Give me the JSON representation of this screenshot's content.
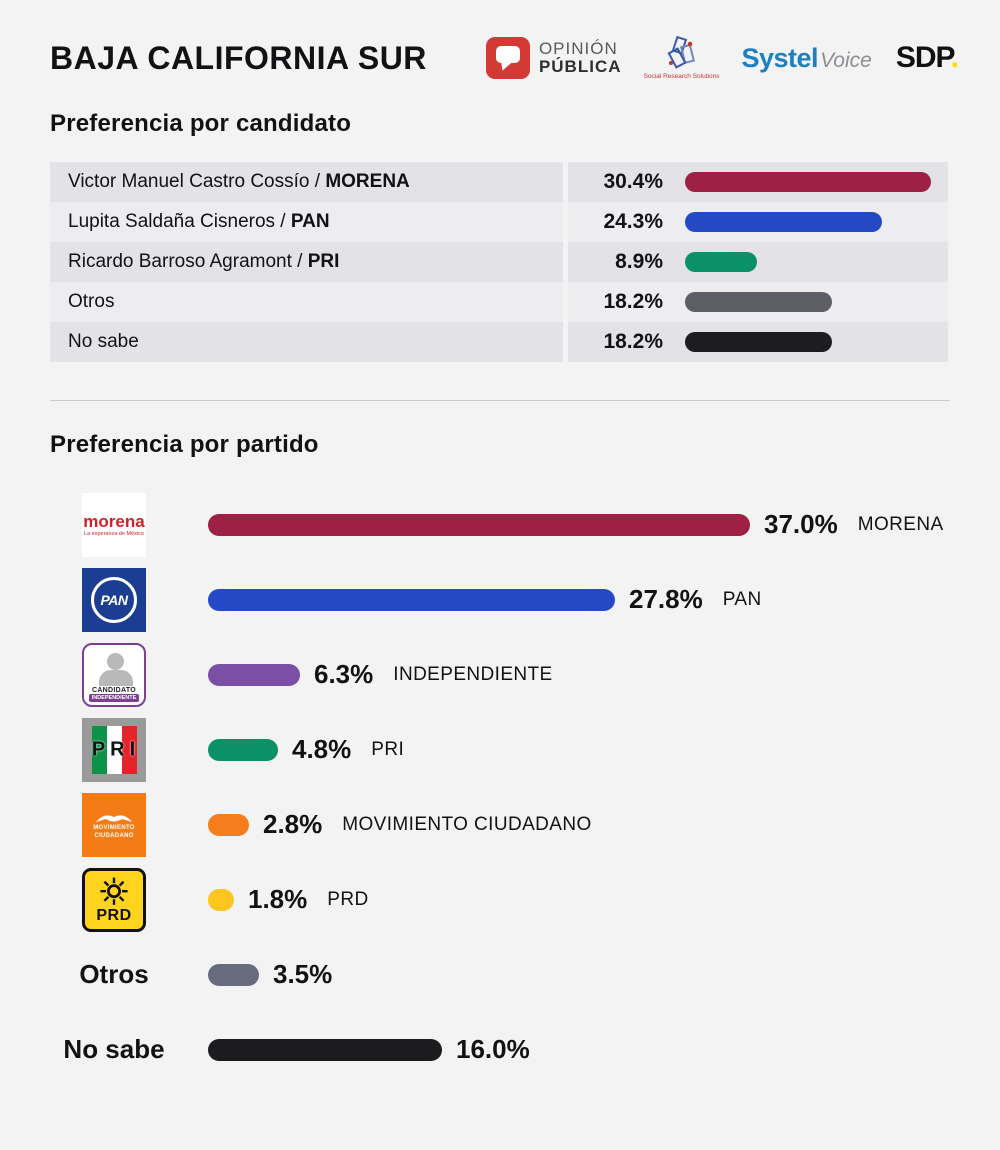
{
  "page": {
    "title": "BAJA CALIFORNIA SUR"
  },
  "logos": {
    "opinion_publica": {
      "line1": "OPINIÓN",
      "line2": "PÚBLICA"
    },
    "srs": {
      "caption": "Social Research Solutions"
    },
    "systel": {
      "brand": "Systel",
      "suffix": "Voice"
    },
    "sdp": {
      "brand": "SDP",
      "dot": "."
    }
  },
  "candidate_section": {
    "title": "Preferencia por candidato",
    "bar_scale": 8.1,
    "rows": [
      {
        "name": "Victor Manuel Castro Cossío",
        "sep": " / ",
        "party": "MORENA",
        "value": "30.4%",
        "pct": 30.4,
        "color": "#9E2145"
      },
      {
        "name": "Lupita Saldaña Cisneros",
        "sep": " / ",
        "party": "PAN",
        "value": "24.3%",
        "pct": 24.3,
        "color": "#2549C6"
      },
      {
        "name": "Ricardo Barroso Agramont",
        "sep": " / ",
        "party": "PRI",
        "value": "8.9%",
        "pct": 8.9,
        "color": "#0A9166"
      },
      {
        "name": "Otros",
        "sep": "",
        "party": "",
        "value": "18.2%",
        "pct": 18.2,
        "color": "#5E5E66"
      },
      {
        "name": "No sabe",
        "sep": "",
        "party": "",
        "value": "18.2%",
        "pct": 18.2,
        "color": "#1D1D20"
      }
    ]
  },
  "party_section": {
    "title": "Preferencia por partido",
    "bar_scale": 14.65,
    "rows": [
      {
        "label": "MORENA",
        "value": "37.0%",
        "pct": 37.0,
        "color": "#9E2145"
      },
      {
        "label": "PAN",
        "value": "27.8%",
        "pct": 27.8,
        "color": "#2549C6"
      },
      {
        "label": "INDEPENDIENTE",
        "value": "6.3%",
        "pct": 6.3,
        "color": "#7B4FA3"
      },
      {
        "label": "PRI",
        "value": "4.8%",
        "pct": 4.8,
        "color": "#0A9166"
      },
      {
        "label": "MOVIMIENTO CIUDADANO",
        "value": "2.8%",
        "pct": 2.8,
        "color": "#F57D1B"
      },
      {
        "label": "PRD",
        "value": "1.8%",
        "pct": 1.8,
        "color": "#FCC51F"
      },
      {
        "label": "Otros",
        "value": "3.5%",
        "pct": 3.5,
        "color": "#676B7E"
      },
      {
        "label": "No sabe",
        "value": "16.0%",
        "pct": 16.0,
        "color": "#1C1C1E"
      }
    ]
  },
  "party_logos": {
    "morena": {
      "name": "morena",
      "tagline": "La esperanza de México"
    },
    "pan": {
      "text": "PAN"
    },
    "independiente": {
      "line1": "CANDIDATO",
      "line2": "INDEPENDIENTE"
    },
    "pri": {
      "text": "PRI"
    },
    "mc": {
      "line1": "MOVIMIENTO",
      "line2": "CIUDADANO"
    },
    "prd": {
      "text": "PRD"
    }
  },
  "chart_data": [
    {
      "type": "bar",
      "orientation": "horizontal",
      "title": "Preferencia por candidato",
      "categories": [
        "Victor Manuel Castro Cossío / MORENA",
        "Lupita Saldaña Cisneros / PAN",
        "Ricardo Barroso Agramont / PRI",
        "Otros",
        "No sabe"
      ],
      "values": [
        30.4,
        24.3,
        8.9,
        18.2,
        18.2
      ],
      "unit": "%",
      "colors": [
        "#9E2145",
        "#2549C6",
        "#0A9166",
        "#5E5E66",
        "#1D1D20"
      ],
      "xlim": [
        0,
        40
      ],
      "grid": false,
      "legend": false
    },
    {
      "type": "bar",
      "orientation": "horizontal",
      "title": "Preferencia por partido",
      "categories": [
        "MORENA",
        "PAN",
        "INDEPENDIENTE",
        "PRI",
        "MOVIMIENTO CIUDADANO",
        "PRD",
        "Otros",
        "No sabe"
      ],
      "values": [
        37.0,
        27.8,
        6.3,
        4.8,
        2.8,
        1.8,
        3.5,
        16.0
      ],
      "unit": "%",
      "colors": [
        "#9E2145",
        "#2549C6",
        "#7B4FA3",
        "#0A9166",
        "#F57D1B",
        "#FCC51F",
        "#676B7E",
        "#1C1C1E"
      ],
      "xlim": [
        0,
        40
      ],
      "grid": false,
      "legend": false
    }
  ]
}
